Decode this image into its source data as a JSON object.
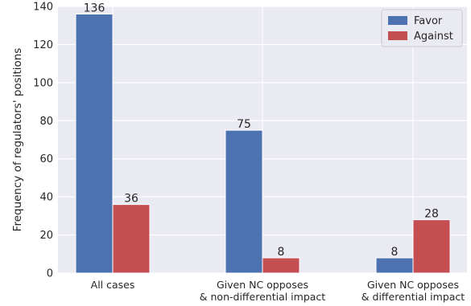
{
  "chart_data": {
    "type": "bar",
    "categories": [
      [
        "All cases"
      ],
      [
        "Given NC opposes",
        "& non-differential impact"
      ],
      [
        "Given NC opposes",
        "& differential impact"
      ]
    ],
    "series": [
      {
        "name": "Favor",
        "values": [
          136,
          75,
          8
        ],
        "color": "#4c72b0"
      },
      {
        "name": "Against",
        "values": [
          36,
          8,
          28
        ],
        "color": "#c44e52"
      }
    ],
    "ylabel": "Frequency of regulators' positions",
    "ylim": [
      0,
      140
    ],
    "yticks": [
      0,
      20,
      40,
      60,
      80,
      100,
      120,
      140
    ],
    "grid": true,
    "legend": "top-right",
    "background_color": "#eaeaf2"
  }
}
